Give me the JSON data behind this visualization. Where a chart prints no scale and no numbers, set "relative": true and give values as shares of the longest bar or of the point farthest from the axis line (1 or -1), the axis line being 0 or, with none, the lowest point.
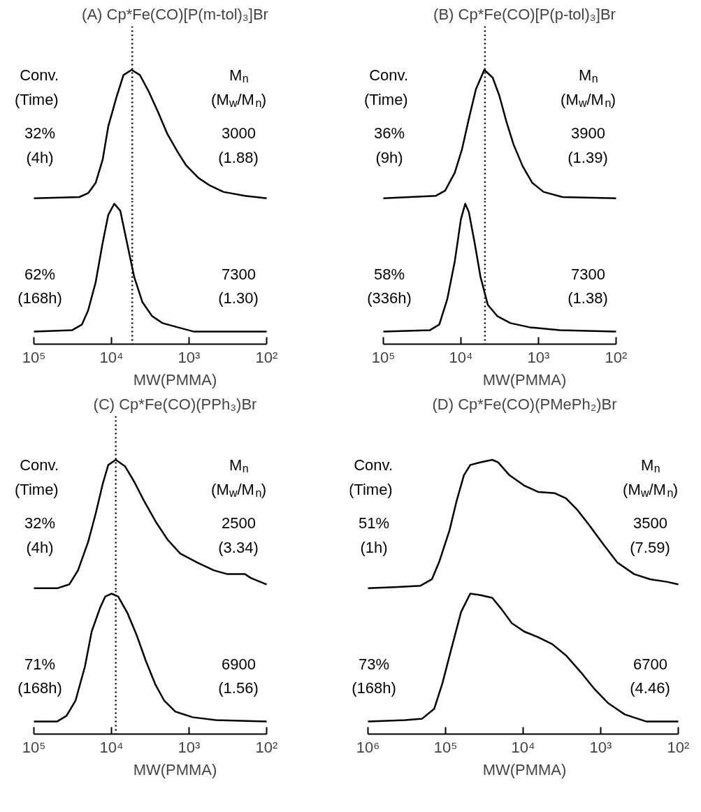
{
  "chart_data": [
    {
      "type": "line",
      "title": "(A) Cp*Fe(CO)[P(m-tol)₃]Br",
      "relative": true,
      "log": "x",
      "tick_labels": false,
      "xlim": [
        100000,
        100
      ],
      "line_style": "solid",
      "color": "#000000",
      "x": [
        100000,
        26000,
        20000,
        16000,
        13000,
        11000,
        8600,
        7000,
        5500,
        4300,
        3300,
        2500,
        1900,
        1400,
        1100,
        760,
        540,
        360,
        190,
        100
      ],
      "values": [
        0,
        0.01,
        0.04,
        0.12,
        0.3,
        0.56,
        0.79,
        0.96,
        1,
        0.96,
        0.83,
        0.67,
        0.5,
        0.36,
        0.26,
        0.16,
        0.1,
        0.05,
        0.02,
        0
      ],
      "ref_lines": [
        {
          "axis": "x",
          "value": 5400,
          "line_style": "dotted",
          "color": "#000000"
        }
      ],
      "annotations": [
        "Conv.",
        "(Time)",
        "32%",
        "(4h)",
        "M$_{n}$",
        "(M$_{w}$/M$_{n}$)",
        "3000",
        "(1.88)"
      ]
    },
    {
      "type": "line",
      "xlabel": "MW(PMMA)",
      "relative": true,
      "log": "x",
      "tick_labels": "x",
      "xlim": [
        100000,
        100
      ],
      "line_style": "solid",
      "color": "#000000",
      "xticks": [
        {
          "value": 100000,
          "label": "10⁵"
        },
        {
          "value": 10000,
          "label": "10⁴"
        },
        {
          "value": 1000,
          "label": "10³"
        },
        {
          "value": 100,
          "label": "10²"
        }
      ],
      "x": [
        100000,
        32000,
        24000,
        20000,
        16000,
        13000,
        11000,
        9200,
        7700,
        6300,
        5100,
        4000,
        3000,
        2200,
        1400,
        880,
        100
      ],
      "values": [
        0.09,
        0.1,
        0.14,
        0.24,
        0.44,
        0.72,
        0.92,
        1,
        0.95,
        0.72,
        0.48,
        0.3,
        0.2,
        0.15,
        0.12,
        0.09,
        0.09
      ],
      "ref_lines": [
        {
          "axis": "x",
          "value": 5400,
          "line_style": "dotted",
          "color": "#000000"
        }
      ],
      "annotations": [
        "62%",
        "(168h)",
        "7300",
        "(1.30)"
      ]
    },
    {
      "type": "line",
      "title": "(B) Cp*Fe(CO)[P(p-tol)₃]Br",
      "relative": true,
      "log": "x",
      "tick_labels": false,
      "xlim": [
        100000,
        100
      ],
      "line_style": "solid",
      "color": "#000000",
      "x": [
        100000,
        21000,
        16000,
        12000,
        9700,
        7900,
        6400,
        5000,
        3900,
        3200,
        2600,
        2100,
        1600,
        1200,
        860,
        490,
        100
      ],
      "values": [
        0,
        0.02,
        0.06,
        0.2,
        0.38,
        0.62,
        0.85,
        1,
        0.94,
        0.8,
        0.6,
        0.42,
        0.25,
        0.12,
        0.05,
        0.01,
        0
      ],
      "ref_lines": [
        {
          "axis": "x",
          "value": 4900,
          "line_style": "dotted",
          "color": "#000000"
        }
      ],
      "annotations": [
        "Conv.",
        "(Time)",
        "36%",
        "(9h)",
        "M$_{n}$",
        "(M$_{w}$/M$_{n}$)",
        "3900",
        "(1.39)"
      ]
    },
    {
      "type": "line",
      "xlabel": "MW(PMMA)",
      "relative": true,
      "log": "x",
      "tick_labels": "x",
      "xlim": [
        100000,
        100
      ],
      "line_style": "solid",
      "color": "#000000",
      "xticks": [
        {
          "value": 100000,
          "label": "10⁵"
        },
        {
          "value": 10000,
          "label": "10⁴"
        },
        {
          "value": 1000,
          "label": "10³"
        },
        {
          "value": 100,
          "label": "10²"
        }
      ],
      "x": [
        100000,
        25000,
        19000,
        15000,
        12000,
        10000,
        8800,
        7900,
        6600,
        5600,
        4500,
        3400,
        2300,
        1300,
        530,
        100
      ],
      "values": [
        0.09,
        0.1,
        0.14,
        0.32,
        0.59,
        0.89,
        1,
        0.94,
        0.71,
        0.48,
        0.28,
        0.2,
        0.15,
        0.12,
        0.1,
        0.09
      ],
      "ref_lines": [
        {
          "axis": "x",
          "value": 4900,
          "line_style": "dotted",
          "color": "#000000"
        }
      ],
      "annotations": [
        "58%",
        "(336h)",
        "7300",
        "(1.38)"
      ]
    },
    {
      "type": "line",
      "title": "(C) Cp*Fe(CO)(PPh₃)Br",
      "relative": true,
      "log": "x",
      "tick_labels": false,
      "xlim": [
        100000,
        100
      ],
      "line_style": "solid",
      "color": "#000000",
      "x": [
        100000,
        50000,
        35000,
        27000,
        20000,
        16000,
        13000,
        11000,
        8800,
        6700,
        5100,
        3800,
        2700,
        1900,
        1300,
        780,
        480,
        320,
        190,
        160,
        100
      ],
      "values": [
        0,
        0,
        0.03,
        0.14,
        0.36,
        0.58,
        0.81,
        0.96,
        1,
        0.95,
        0.83,
        0.68,
        0.52,
        0.38,
        0.27,
        0.2,
        0.14,
        0.11,
        0.11,
        0.08,
        0.03
      ],
      "ref_lines": [
        {
          "axis": "x",
          "value": 8800,
          "line_style": "dotted",
          "color": "#000000"
        }
      ],
      "annotations": [
        "Conv.",
        "(Time)",
        "32%",
        "(4h)",
        "M$_{n}$",
        "(M$_{w}$/M$_{n}$)",
        "2500",
        "(3.34)"
      ]
    },
    {
      "type": "line",
      "xlabel": "MW(PMMA)",
      "relative": true,
      "log": "x",
      "tick_labels": "x",
      "xlim": [
        100000,
        100
      ],
      "line_style": "solid",
      "color": "#000000",
      "xticks": [
        {
          "value": 100000,
          "label": "10⁵"
        },
        {
          "value": 10000,
          "label": "10⁴"
        },
        {
          "value": 1000,
          "label": "10³"
        },
        {
          "value": 100,
          "label": "10²"
        }
      ],
      "x": [
        100000,
        50000,
        38000,
        29000,
        22000,
        18000,
        14000,
        12000,
        10000,
        8200,
        6200,
        4700,
        3600,
        2700,
        2100,
        1500,
        900,
        450,
        100
      ],
      "values": [
        0.09,
        0.09,
        0.13,
        0.24,
        0.48,
        0.73,
        0.9,
        0.98,
        1,
        0.98,
        0.86,
        0.7,
        0.52,
        0.35,
        0.24,
        0.16,
        0.12,
        0.1,
        0.09
      ],
      "ref_lines": [
        {
          "axis": "x",
          "value": 8800,
          "line_style": "dotted",
          "color": "#000000"
        }
      ],
      "annotations": [
        "71%",
        "(168h)",
        "6900",
        "(1.56)"
      ]
    },
    {
      "type": "line",
      "title": "(D) Cp*Fe(CO)(PMePh₂)Br",
      "relative": true,
      "log": "x",
      "tick_labels": false,
      "xlim": [
        1000000,
        100
      ],
      "line_style": "solid",
      "color": "#000000",
      "x": [
        1000000,
        410000,
        210000,
        150000,
        120000,
        89000,
        72000,
        58000,
        48000,
        36000,
        25000,
        21000,
        15000,
        9700,
        6400,
        3900,
        2800,
        2000,
        1400,
        920,
        610,
        370,
        230,
        140,
        100
      ],
      "values": [
        0,
        0.01,
        0.02,
        0.07,
        0.21,
        0.45,
        0.68,
        0.88,
        0.96,
        0.98,
        1,
        0.98,
        0.88,
        0.8,
        0.75,
        0.74,
        0.7,
        0.61,
        0.49,
        0.34,
        0.2,
        0.11,
        0.07,
        0.05,
        0.03
      ],
      "annotations": [
        "Conv.",
        "(Time)",
        "51%",
        "(1h)",
        "M$_{n}$",
        "(M$_{w}$/M$_{n}$)",
        "3500",
        "(7.59)"
      ]
    },
    {
      "type": "line",
      "xlabel": "MW(PMMA)",
      "relative": true,
      "log": "x",
      "tick_labels": "x",
      "xlim": [
        1000000,
        100
      ],
      "line_style": "solid",
      "color": "#000000",
      "xticks": [
        {
          "value": 1000000,
          "label": "10⁶"
        },
        {
          "value": 100000,
          "label": "10⁵"
        },
        {
          "value": 10000,
          "label": "10⁴"
        },
        {
          "value": 1000,
          "label": "10³"
        },
        {
          "value": 100,
          "label": "10²"
        }
      ],
      "x": [
        1000000,
        330000,
        200000,
        140000,
        110000,
        83000,
        63000,
        48000,
        36000,
        25000,
        19000,
        14000,
        9700,
        6400,
        4200,
        2800,
        1800,
        1200,
        800,
        490,
        260,
        100
      ],
      "values": [
        0.09,
        0.1,
        0.11,
        0.18,
        0.36,
        0.62,
        0.87,
        1,
        0.99,
        0.97,
        0.89,
        0.79,
        0.73,
        0.69,
        0.64,
        0.56,
        0.44,
        0.32,
        0.22,
        0.14,
        0.09,
        0.09
      ],
      "annotations": [
        "73%",
        "(168h)",
        "6700",
        "(4.46)"
      ]
    }
  ]
}
